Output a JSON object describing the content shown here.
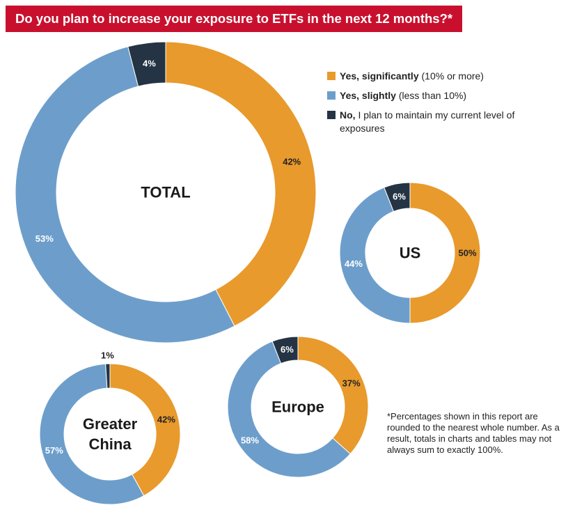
{
  "title": "Do you plan to increase your exposure to ETFs in the next 12 months?*",
  "colors": {
    "significantly": "#e89a2c",
    "slightly": "#6d9ecb",
    "maintain": "#243444",
    "title_bg": "#c8102e"
  },
  "legend": [
    {
      "key": "significantly",
      "strong": "Yes, significantly",
      "rest": " (10% or more)"
    },
    {
      "key": "slightly",
      "strong": "Yes, slightly",
      "rest": " (less than 10%)"
    },
    {
      "key": "maintain",
      "strong": "No,",
      "rest": " I plan to maintain my current level of exposures"
    }
  ],
  "footnote": "*Percentages shown in this report are rounded to the nearest whole number. As a result, totals in charts and tables may not always sum to exactly 100%.",
  "chart_data": [
    {
      "type": "pie",
      "name": "TOTAL",
      "center_label": [
        "TOTAL"
      ],
      "series": [
        {
          "key": "significantly",
          "value": 42,
          "label": "42%"
        },
        {
          "key": "slightly",
          "value": 53,
          "label": "53%"
        },
        {
          "key": "maintain",
          "value": 4,
          "label": "4%"
        }
      ]
    },
    {
      "type": "pie",
      "name": "US",
      "center_label": [
        "US"
      ],
      "series": [
        {
          "key": "significantly",
          "value": 50,
          "label": "50%"
        },
        {
          "key": "slightly",
          "value": 44,
          "label": "44%"
        },
        {
          "key": "maintain",
          "value": 6,
          "label": "6%"
        }
      ]
    },
    {
      "type": "pie",
      "name": "Greater China",
      "center_label": [
        "Greater",
        "China"
      ],
      "series": [
        {
          "key": "significantly",
          "value": 42,
          "label": "42%"
        },
        {
          "key": "slightly",
          "value": 57,
          "label": "57%"
        },
        {
          "key": "maintain",
          "value": 1,
          "label": "1%"
        }
      ]
    },
    {
      "type": "pie",
      "name": "Europe",
      "center_label": [
        "Europe"
      ],
      "series": [
        {
          "key": "significantly",
          "value": 37,
          "label": "37%"
        },
        {
          "key": "slightly",
          "value": 58,
          "label": "58%"
        },
        {
          "key": "maintain",
          "value": 6,
          "label": "6%"
        }
      ]
    }
  ]
}
